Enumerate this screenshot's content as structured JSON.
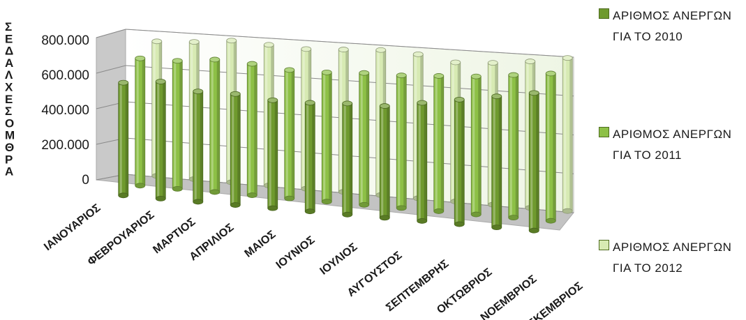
{
  "chart_data": {
    "type": "bar",
    "title": "",
    "ylabel": "ΣΕΔΑΛΧΕΣΟΜΘΡΑ",
    "xlabel": "",
    "ylim": [
      0,
      800000
    ],
    "y_ticks": [
      "0",
      "200.000",
      "400.000",
      "600.000",
      "800.000"
    ],
    "grid": true,
    "legend_position": "right",
    "categories": [
      "ΙΑΝΟΥΑΡΙΟΣ",
      "ΦΕΒΡΟΥΑΡΙΟΣ",
      "ΜΑΡΤΙΟΣ",
      "ΑΠΡΙΛΙΟΣ",
      "ΜΑΙΟΣ",
      "ΙΟΥΝΙΟΣ",
      "ΙΟΥΛΙΟΣ",
      "ΑΥΓΟΥΣΤΟΣ",
      "ΣΕΠΤΕΜΒΡΗΣ",
      "ΟΚΤΩΒΡΙΟΣ",
      "ΝΟΕΜΒΡΙΟΣ",
      "ΔΕΚΕΜΒΡΙΟΣ"
    ],
    "series": [
      {
        "name": "ΑΡΙΘΜΟΣ ΑΝΕΡΓΩΝ ΓΙΑ ΤΟ 2010",
        "color": "#6f9a2e",
        "values": [
          620000,
          640000,
          600000,
          600000,
          580000,
          580000,
          590000,
          590000,
          620000,
          650000,
          680000,
          710000
        ]
      },
      {
        "name": "ΑΡΙΘΜΟΣ ΑΝΕΡΓΩΝ ΓΙΑ ΤΟ 2011",
        "color": "#8dc046",
        "values": [
          700000,
          700000,
          720000,
          710000,
          690000,
          690000,
          700000,
          700000,
          710000,
          720000,
          740000,
          760000
        ]
      },
      {
        "name": "ΑΡΙΘΜΟΣ ΑΝΕΡΓΩΝ ΓΙΑ ΤΟ 2012",
        "color": "#d7eab3",
        "values": [
          740000,
          750000,
          770000,
          760000,
          750000,
          760000,
          770000,
          760000,
          730000,
          740000,
          760000,
          790000
        ]
      }
    ]
  }
}
